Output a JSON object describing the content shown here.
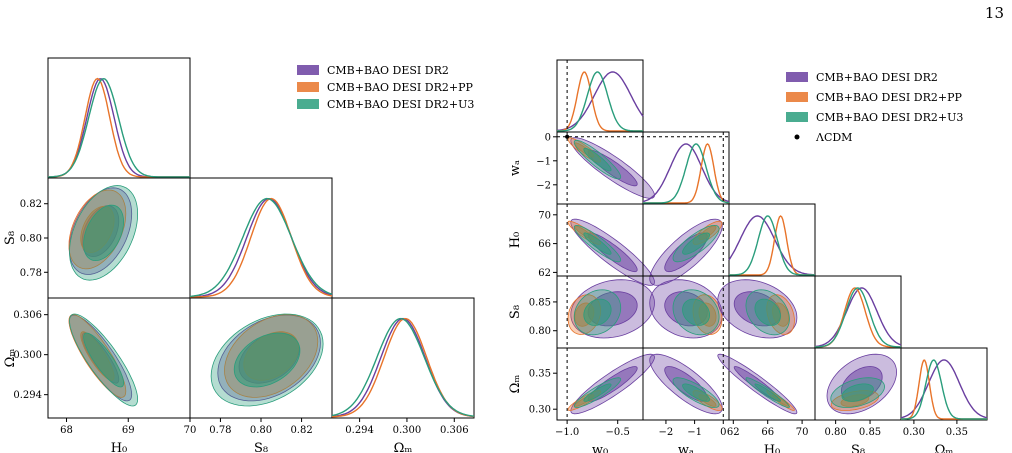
{
  "page_number": "13",
  "colors": {
    "dr2": "#6a3fa0",
    "pp": "#e8742a",
    "u3": "#2a9d7c",
    "lcdm": "#000000"
  },
  "legend_left": [
    {
      "label": "CMB+BAO DESI DR2",
      "color": "#6a3fa0"
    },
    {
      "label": "CMB+BAO DESI DR2+PP",
      "color": "#e8742a"
    },
    {
      "label": "CMB+BAO DESI DR2+U3",
      "color": "#2a9d7c"
    }
  ],
  "legend_right": [
    {
      "label": "CMB+BAO DESI DR2",
      "color": "#6a3fa0",
      "kind": "patch"
    },
    {
      "label": "CMB+BAO DESI DR2+PP",
      "color": "#e8742a",
      "kind": "patch"
    },
    {
      "label": "CMB+BAO DESI DR2+U3",
      "color": "#2a9d7c",
      "kind": "patch"
    },
    {
      "label": "ΛCDM",
      "color": "#000000",
      "kind": "dot"
    }
  ],
  "chart_data": [
    {
      "type": "corner",
      "parameters": [
        {
          "label": "H₀",
          "ticks": [
            "68",
            "69",
            "70"
          ],
          "range": [
            67.7,
            70.0
          ]
        },
        {
          "label": "S₈",
          "ticks": [
            "0.78",
            "0.80",
            "0.82"
          ],
          "range": [
            0.765,
            0.835
          ]
        },
        {
          "label": "Ωₘ",
          "ticks": [
            "0.294",
            "0.300",
            "0.306"
          ],
          "range": [
            0.2905,
            0.3085
          ]
        }
      ],
      "series": [
        {
          "name": "CMB+BAO DESI DR2",
          "means": [
            68.55,
            0.804,
            0.2995
          ]
        },
        {
          "name": "CMB+BAO DESI DR2+PP",
          "means": [
            68.5,
            0.805,
            0.2998
          ]
        },
        {
          "name": "CMB+BAO DESI DR2+U3",
          "means": [
            68.6,
            0.803,
            0.2992
          ]
        }
      ]
    },
    {
      "type": "corner",
      "parameters": [
        {
          "label": "w₀",
          "ticks": [
            "−1.0",
            "−0.5"
          ],
          "range": [
            -1.1,
            -0.25
          ]
        },
        {
          "label": "wₐ",
          "ticks": [
            "−2",
            "−1",
            "0"
          ],
          "range": [
            -2.8,
            0.2
          ]
        },
        {
          "label": "H₀",
          "ticks": [
            "62",
            "66",
            "70"
          ],
          "range": [
            61.5,
            71.5
          ]
        },
        {
          "label": "S₈",
          "ticks": [
            "0.80",
            "0.85"
          ],
          "range": [
            0.77,
            0.895
          ]
        },
        {
          "label": "Ωₘ",
          "ticks": [
            "0.30",
            "0.35"
          ],
          "range": [
            0.285,
            0.385
          ]
        }
      ],
      "series": [
        {
          "name": "CMB+BAO DESI DR2",
          "means": [
            -0.55,
            -1.3,
            64.8,
            0.838,
            0.335
          ]
        },
        {
          "name": "CMB+BAO DESI DR2+PP",
          "means": [
            -0.83,
            -0.55,
            67.5,
            0.828,
            0.312
          ]
        },
        {
          "name": "CMB+BAO DESI DR2+U3",
          "means": [
            -0.7,
            -0.95,
            66.0,
            0.832,
            0.323
          ]
        }
      ],
      "reference": {
        "name": "ΛCDM",
        "values": [
          -1.0,
          0.0
        ]
      }
    }
  ]
}
